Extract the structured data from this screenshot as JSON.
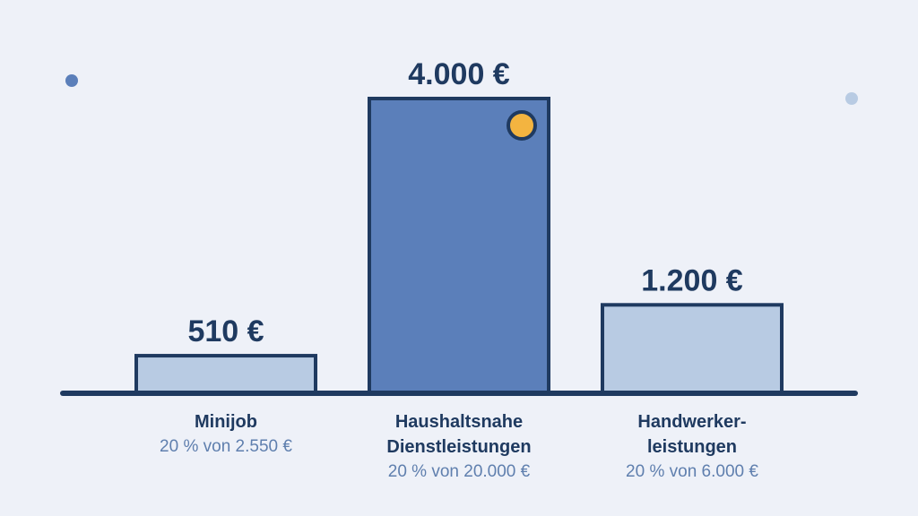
{
  "chart_data": {
    "type": "bar",
    "ylim": [
      0,
      4000
    ],
    "unit": "€",
    "bars": [
      {
        "category_lines": [
          "Minijob"
        ],
        "value": 510,
        "value_label": "510 €",
        "subtitle": "20 % von 2.550 €"
      },
      {
        "category_lines": [
          "Haushaltsnahe",
          "Dienstleistungen"
        ],
        "value": 4000,
        "value_label": "4.000 €",
        "subtitle": "20 % von 20.000 €",
        "highlight": true
      },
      {
        "category_lines": [
          "Handwerker-",
          "leistungen"
        ],
        "value": 1200,
        "value_label": "1.200 €",
        "subtitle": "20 % von 6.000 €"
      }
    ],
    "grid": false,
    "legend": "none"
  },
  "colors": {
    "background": "#eef1f8",
    "bar_light": "#b8cbe3",
    "bar_highlight": "#5b7fba",
    "outline": "#1f3a60",
    "text_dark": "#1f3a60",
    "text_muted": "#5f7fae",
    "marker": "#f3b440",
    "dot_left": "#5b7fba",
    "dot_right": "#b8cbe3"
  }
}
